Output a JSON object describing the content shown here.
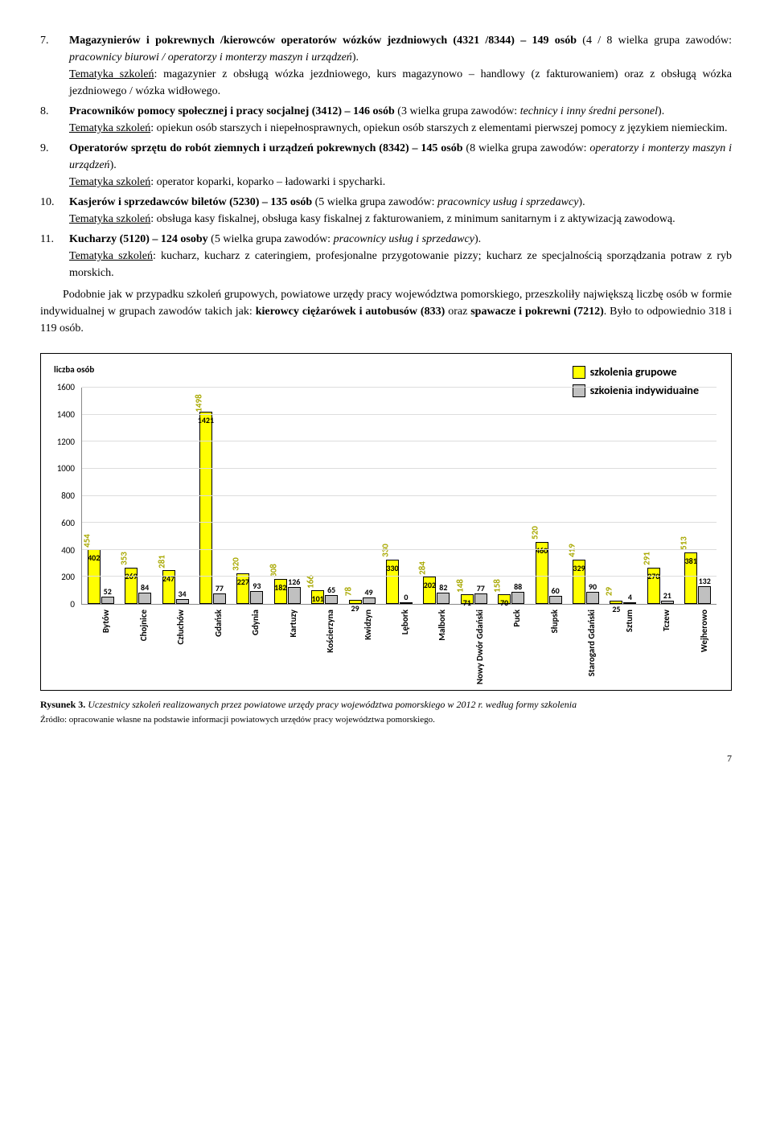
{
  "list": [
    {
      "n": "7.",
      "html": "<b>Magazynierów i pokrewnych /kierowców operatorów wózków jezdniowych (4321 /8344) – 149 osób</b> (4 / 8 wielka grupa zawodów: <i>pracownicy biurowi / operatorzy i monterzy maszyn i urządzeń</i>).<br><u>Tematyka szkoleń</u>: magazynier z obsługą wózka jezdniowego, kurs magazynowo – handlowy (z fakturowaniem) oraz z obsługą wózka jezdniowego / wózka widłowego."
    },
    {
      "n": "8.",
      "html": "<b>Pracowników pomocy społecznej i pracy socjalnej (3412) – 146 osób</b> (3 wielka grupa zawodów: <i>technicy i inny średni personel</i>).<br><u>Tematyka szkoleń</u>: opiekun osób starszych i niepełnosprawnych, opiekun osób starszych z elementami pierwszej pomocy z językiem niemieckim."
    },
    {
      "n": "9.",
      "html": "<b>Operatorów sprzętu do robót ziemnych i urządzeń pokrewnych (8342) – 145 osób</b> (8 wielka grupa zawodów: <i>operatorzy i monterzy maszyn i urządzeń</i>).<br><u>Tematyka szkoleń</u>: operator koparki, koparko – ładowarki i spycharki."
    },
    {
      "n": "10.",
      "html": "<b>Kasjerów i sprzedawców biletów (5230) – 135 osób</b> (5 wielka grupa zawodów: <i>pracownicy usług i sprzedawcy</i>).<br><u>Tematyka szkoleń</u>: obsługa kasy fiskalnej, obsługa kasy fiskalnej z fakturowaniem, z minimum sanitarnym i z aktywizacją zawodową."
    },
    {
      "n": "11.",
      "html": "<b>Kucharzy (5120) – 124 osoby</b> (5 wielka grupa zawodów: <i>pracownicy usług i sprzedawcy</i>).<br><u>Tematyka szkoleń</u>: kucharz, kucharz z cateringiem, profesjonalne przygotowanie pizzy; kucharz ze specjalnością sporządzania potraw z ryb morskich."
    }
  ],
  "para": "Podobnie jak w przypadku szkoleń grupowych, powiatowe urzędy pracy województwa pomorskiego, przeszkoliły największą liczbę osób w formie indywidualnej w grupach zawodów takich jak: <b>kierowcy ciężarówek i autobusów (833)</b> oraz <b>spawacze i pokrewni (7212)</b>. Było to odpowiednio 318 i 119 osób.",
  "chart": {
    "ylabel": "liczba osób",
    "legend": [
      {
        "label": "szkolenia grupowe",
        "color": "#ffff00"
      },
      {
        "label": "szkolenia indywidualne",
        "color": "#c0c0c0"
      }
    ],
    "ymax": 1600,
    "ystep": 200,
    "colors": {
      "grupowe": "#ffff00",
      "indyw": "#c0c0c0",
      "grid": "#dddddd",
      "total": "#a8a800"
    },
    "categories": [
      "Bytów",
      "Chojnice",
      "Człuchów",
      "Gdańsk",
      "Gdynia",
      "Kartuzy",
      "Kościerzyna",
      "Kwidzyn",
      "Lębork",
      "Malbork",
      "Nowy Dwór Gdański",
      "Puck",
      "Słupsk",
      "Starogard Gdański",
      "Sztum",
      "Tczew",
      "Wejherowo"
    ],
    "grupowe": [
      402,
      269,
      247,
      1421,
      227,
      182,
      101,
      29,
      330,
      202,
      71,
      70,
      460,
      329,
      25,
      270,
      381
    ],
    "indyw": [
      52,
      84,
      34,
      77,
      93,
      126,
      65,
      49,
      0,
      82,
      77,
      88,
      60,
      90,
      4,
      21,
      132
    ],
    "total": [
      454,
      353,
      281,
      1498,
      320,
      308,
      166,
      78,
      330,
      284,
      148,
      158,
      520,
      419,
      29,
      291,
      513
    ]
  },
  "caption_label": "Rysunek 3.",
  "caption_text": " Uczestnicy szkoleń realizowanych przez powiatowe urzędy pracy województwa pomorskiego w 2012 r. według formy szkolenia",
  "source": "Źródło: opracowanie własne na podstawie informacji powiatowych urzędów pracy województwa pomorskiego.",
  "page": "7"
}
